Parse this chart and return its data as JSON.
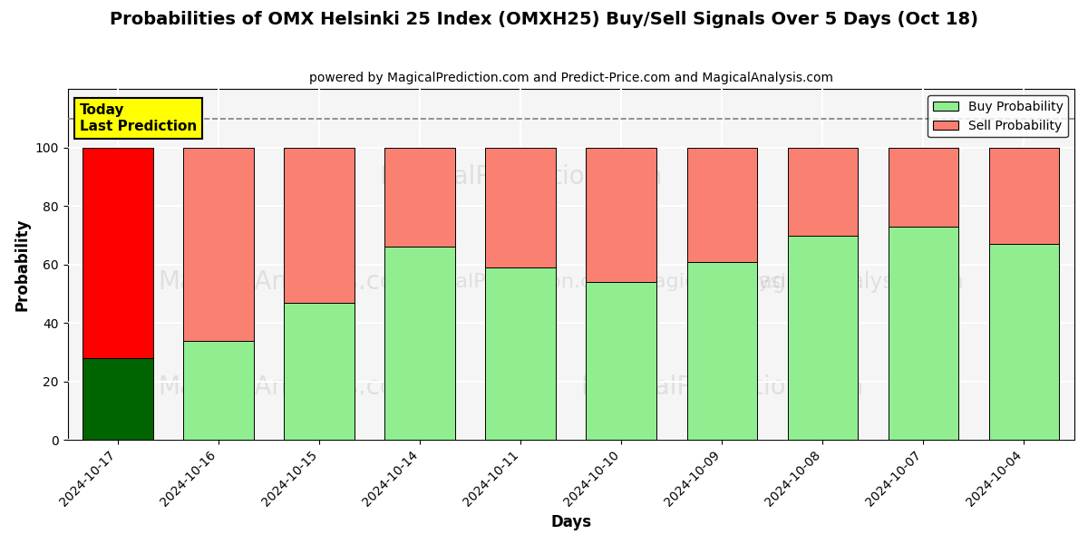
{
  "title": "Probabilities of OMX Helsinki 25 Index (OMXH25) Buy/Sell Signals Over 5 Days (Oct 18)",
  "subtitle": "powered by MagicalPrediction.com and Predict-Price.com and MagicalAnalysis.com",
  "xlabel": "Days",
  "ylabel": "Probability",
  "categories": [
    "2024-10-17",
    "2024-10-16",
    "2024-10-15",
    "2024-10-14",
    "2024-10-11",
    "2024-10-10",
    "2024-10-09",
    "2024-10-08",
    "2024-10-07",
    "2024-10-04"
  ],
  "buy_values": [
    28,
    34,
    47,
    66,
    59,
    54,
    61,
    70,
    73,
    67
  ],
  "sell_values": [
    72,
    66,
    53,
    34,
    41,
    46,
    39,
    30,
    27,
    33
  ],
  "buy_colors": [
    "#006400",
    "#90EE90",
    "#90EE90",
    "#90EE90",
    "#90EE90",
    "#90EE90",
    "#90EE90",
    "#90EE90",
    "#90EE90",
    "#90EE90"
  ],
  "sell_colors": [
    "#FF0000",
    "#FA8072",
    "#FA8072",
    "#FA8072",
    "#FA8072",
    "#FA8072",
    "#FA8072",
    "#FA8072",
    "#FA8072",
    "#FA8072"
  ],
  "legend_buy_color": "#90EE90",
  "legend_sell_color": "#FA8072",
  "dashed_line_y": 110,
  "ylim": [
    0,
    120
  ],
  "yticks": [
    0,
    20,
    40,
    60,
    80,
    100
  ],
  "today_label": "Today\nLast Prediction",
  "today_bg": "#FFFF00",
  "watermark1": "MagicalAnalysis.com",
  "watermark2": "MagicalPrediction.com",
  "bar_width": 0.7,
  "edgecolor": "#000000",
  "grid_color": "#C0C0C0",
  "bg_color": "#F5F5F5"
}
